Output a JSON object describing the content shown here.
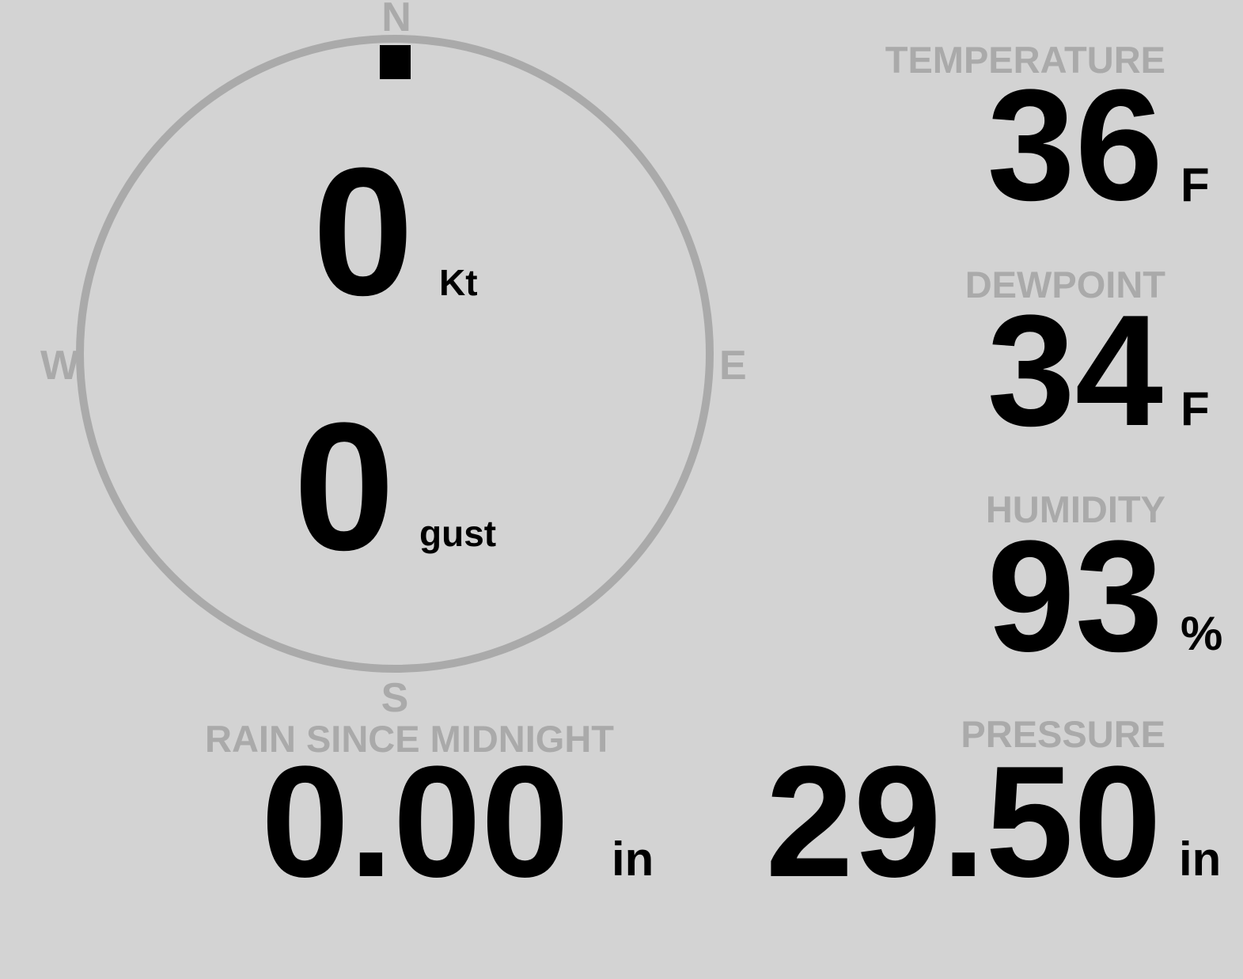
{
  "colors": {
    "background": "#d3d3d3",
    "label": "#aaaaaa",
    "value": "#000000",
    "ring": "#aaaaaa",
    "wind_marker": "#000000"
  },
  "wind": {
    "compass": {
      "n": "N",
      "e": "E",
      "s": "S",
      "w": "W"
    },
    "direction_deg": 0,
    "speed": "0",
    "speed_unit": "Kt",
    "gust": "0",
    "gust_unit": "gust"
  },
  "temperature": {
    "label": "TEMPERATURE",
    "value": "36",
    "unit": "F"
  },
  "dewpoint": {
    "label": "DEWPOINT",
    "value": "34",
    "unit": "F"
  },
  "humidity": {
    "label": "HUMIDITY",
    "value": "93",
    "unit": "%"
  },
  "pressure": {
    "label": "PRESSURE",
    "value": "29.50",
    "unit": "in"
  },
  "rain": {
    "label": "RAIN SINCE MIDNIGHT",
    "value": "0.00",
    "unit": "in"
  }
}
